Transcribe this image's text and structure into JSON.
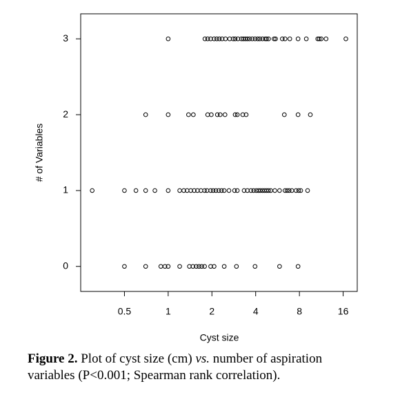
{
  "chart_data": {
    "type": "scatter",
    "xlabel": "Cyst size",
    "ylabel": "# of Variables",
    "xscale": "log",
    "color": "#000000",
    "xlim": [
      0.25,
      20
    ],
    "ylim": [
      -0.33,
      3.33
    ],
    "xticks": [
      0.5,
      1,
      2,
      4,
      8,
      16
    ],
    "yticks": [
      0,
      1,
      2,
      3
    ],
    "x": [
      1,
      1.79,
      1.87,
      1.96,
      2.07,
      2.16,
      2.25,
      2.35,
      2.48,
      2.65,
      2.8,
      2.89,
      3.02,
      3.19,
      3.29,
      3.4,
      3.51,
      3.63,
      3.79,
      3.96,
      4.13,
      4.27,
      4.46,
      4.66,
      4.76,
      4.91,
      5.36,
      5.48,
      6.1,
      6.37,
      6.87,
      7.83,
      8.92,
      10.7,
      10.95,
      11.3,
      12.2,
      16.7,
      0.7,
      1,
      1.38,
      1.49,
      1.87,
      1.98,
      2.18,
      2.28,
      2.46,
      2.89,
      2.99,
      3.26,
      3.44,
      6.3,
      7.83,
      9.51,
      0.3,
      0.5,
      0.6,
      0.7,
      0.81,
      1,
      1.2,
      1.28,
      1.35,
      1.43,
      1.51,
      1.59,
      1.68,
      1.78,
      1.85,
      1.96,
      2.04,
      2.13,
      2.23,
      2.33,
      2.43,
      2.62,
      2.86,
      2.99,
      3.33,
      3.51,
      3.71,
      3.87,
      4.04,
      4.18,
      4.31,
      4.46,
      4.61,
      4.76,
      4.91,
      5.08,
      5.42,
      5.84,
      6.37,
      6.58,
      6.8,
      7.1,
      7.58,
      7.91,
      8.17,
      9.11,
      0.5,
      0.7,
      0.89,
      0.95,
      1,
      1.2,
      1.4,
      1.48,
      1.56,
      1.63,
      1.7,
      1.78,
      1.96,
      2.07,
      2.43,
      2.95,
      3.96,
      5.84,
      7.83
    ],
    "y": [
      3,
      3,
      3,
      3,
      3,
      3,
      3,
      3,
      3,
      3,
      3,
      3,
      3,
      3,
      3,
      3,
      3,
      3,
      3,
      3,
      3,
      3,
      3,
      3,
      3,
      3,
      3,
      3,
      3,
      3,
      3,
      3,
      3,
      3,
      3,
      3,
      3,
      3,
      2,
      2,
      2,
      2,
      2,
      2,
      2,
      2,
      2,
      2,
      2,
      2,
      2,
      2,
      2,
      2,
      1,
      1,
      1,
      1,
      1,
      1,
      1,
      1,
      1,
      1,
      1,
      1,
      1,
      1,
      1,
      1,
      1,
      1,
      1,
      1,
      1,
      1,
      1,
      1,
      1,
      1,
      1,
      1,
      1,
      1,
      1,
      1,
      1,
      1,
      1,
      1,
      1,
      1,
      1,
      1,
      1,
      1,
      1,
      1,
      1,
      1,
      0,
      0,
      0,
      0,
      0,
      0,
      0,
      0,
      0,
      0,
      0,
      0,
      0,
      0,
      0,
      0,
      0,
      0,
      0
    ]
  },
  "caption": {
    "label": "Figure 2.",
    "text_before": "Plot of cyst size (cm)",
    "italic": "vs.",
    "text_after": "number of aspiration variables (P<0.001; Spearman rank correlation)."
  }
}
